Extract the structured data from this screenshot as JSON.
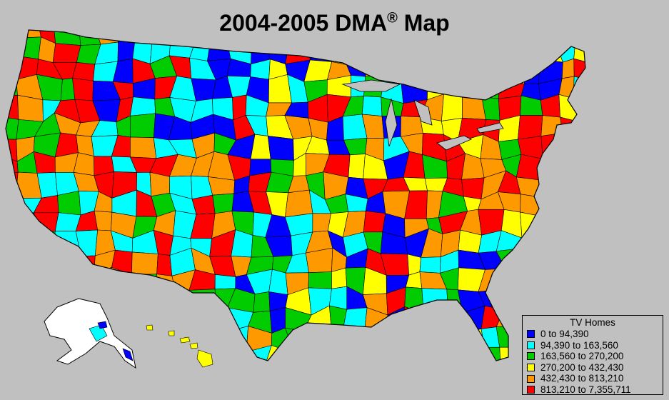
{
  "title": "2004-2005 DMA",
  "title_mark": "®",
  "title_suffix": " Map",
  "legend": {
    "title": "TV Homes",
    "items": [
      {
        "label": "0 to 94,390",
        "color": "#0000ff"
      },
      {
        "label": "94,390 to 163,560",
        "color": "#00ffff"
      },
      {
        "label": "163,560 to 270,200",
        "color": "#00cc00"
      },
      {
        "label": "270,200 to 432,430",
        "color": "#ffff00"
      },
      {
        "label": "432,430 to 813,210",
        "color": "#ff9900"
      },
      {
        "label": "813,210 to 7,355,711",
        "color": "#ff0000"
      }
    ]
  },
  "colors": {
    "background": "#c0c0c0",
    "alaska": "#ffffff",
    "border": "#000000"
  }
}
